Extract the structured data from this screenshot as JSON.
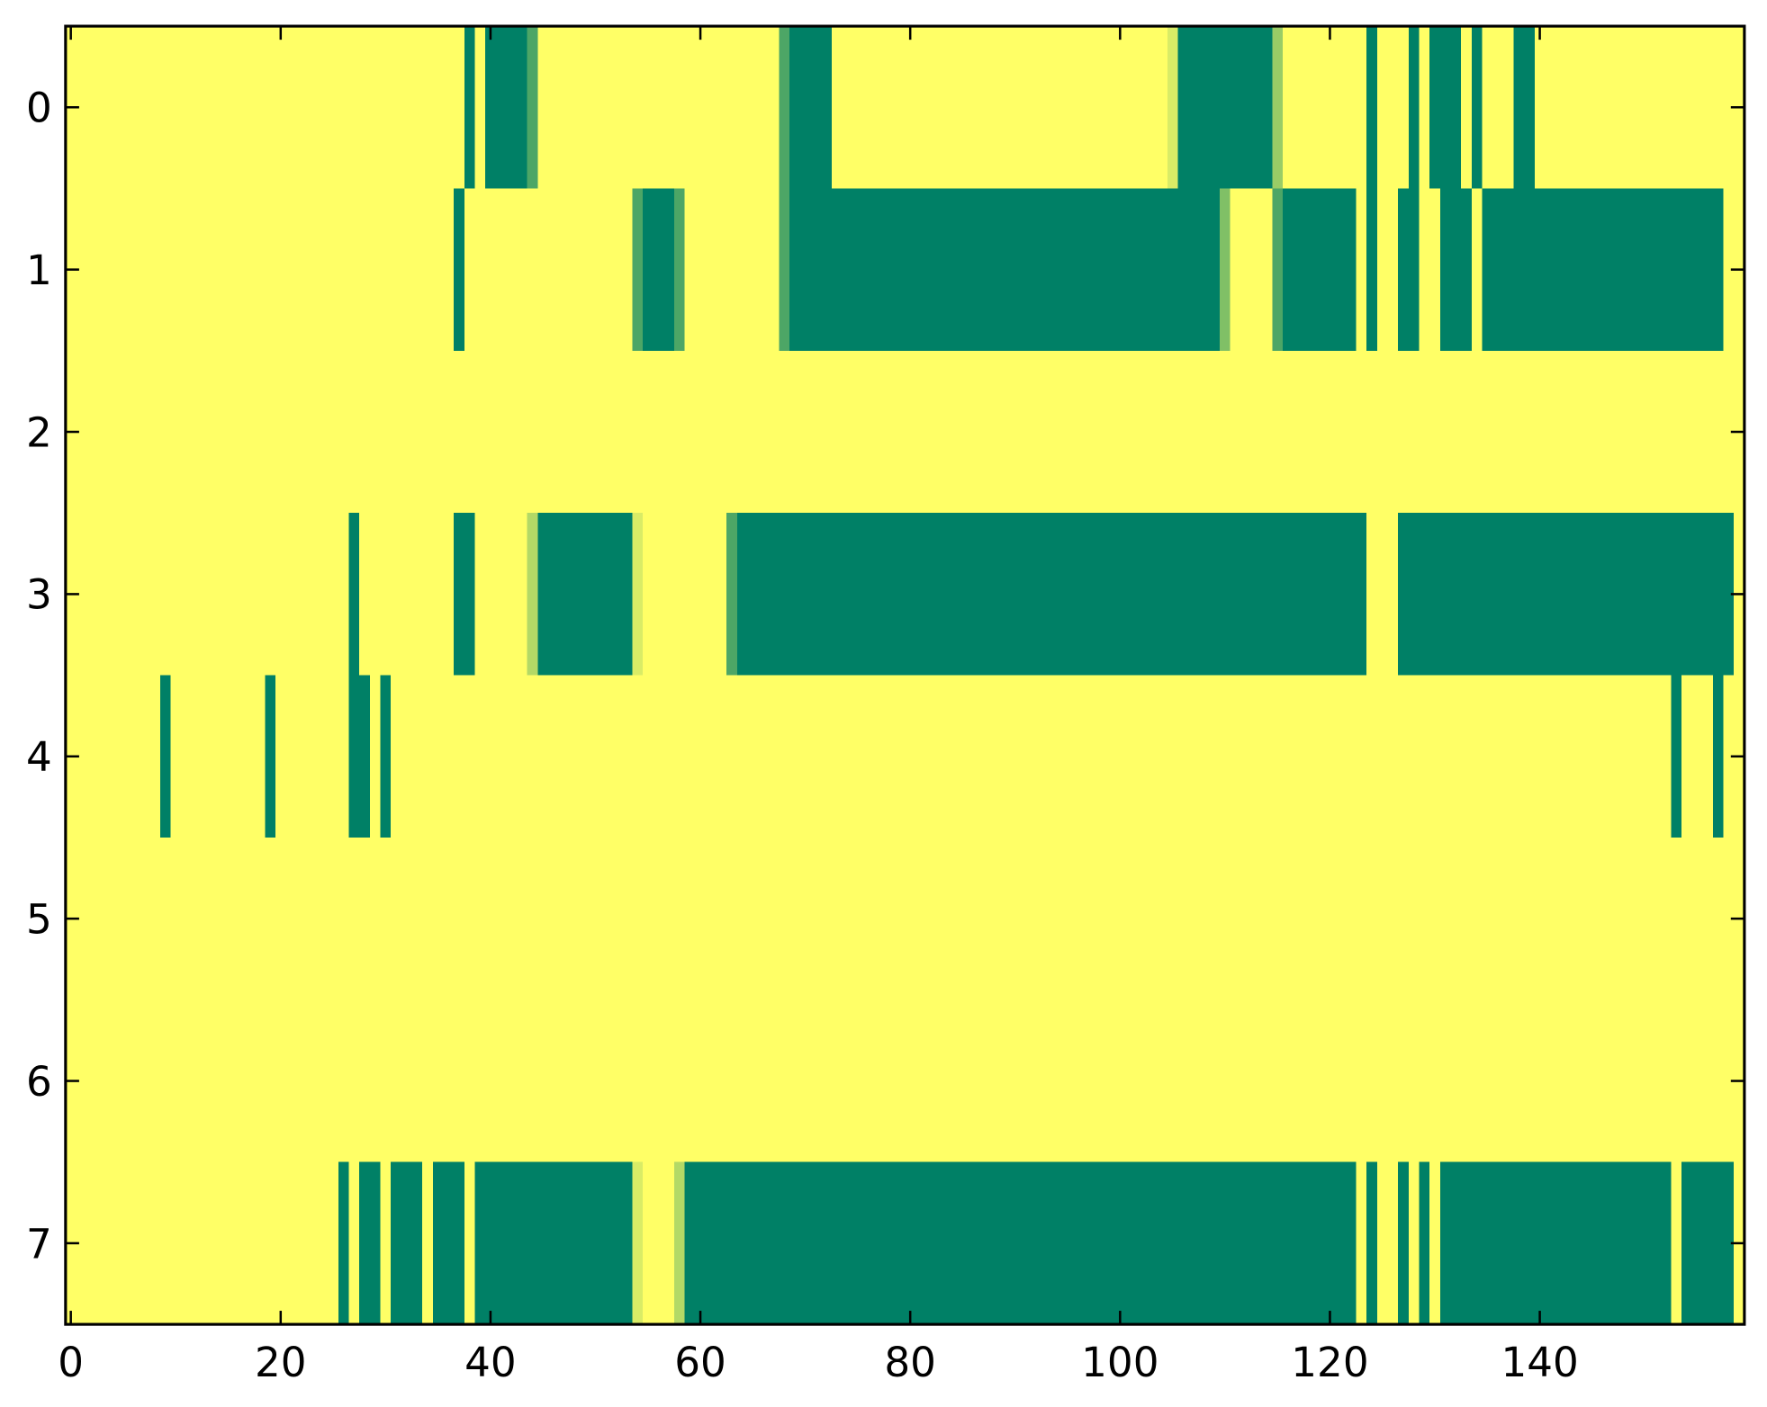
{
  "chart_data": {
    "type": "heatmap",
    "colors": [
      "#008066",
      "#ffff66"
    ],
    "clim": [
      0,
      1
    ],
    "xlim": [
      -0.5,
      159.5
    ],
    "ylim": [
      7.5,
      -0.5
    ],
    "xticks": [
      0,
      20,
      40,
      60,
      80,
      100,
      120,
      140
    ],
    "yticks": [
      0,
      1,
      2,
      3,
      4,
      5,
      6,
      7
    ],
    "values": [
      [
        1,
        1,
        1,
        1,
        1,
        1,
        1,
        1,
        1,
        1,
        1,
        1,
        1,
        1,
        1,
        1,
        1,
        1,
        1,
        1,
        1,
        1,
        1,
        1,
        1,
        1,
        1,
        1,
        1,
        1,
        1,
        1,
        1,
        1,
        1,
        1,
        1,
        1,
        0,
        1,
        0,
        0,
        0,
        0,
        0.3,
        1,
        1,
        1,
        1,
        1,
        1,
        1,
        1,
        1,
        1,
        1,
        1,
        1,
        1,
        1,
        1,
        1,
        1,
        1,
        1,
        1,
        1,
        1,
        0.3,
        0,
        0,
        0,
        0,
        1,
        1,
        1,
        1,
        1,
        1,
        1,
        1,
        1,
        1,
        1,
        1,
        1,
        1,
        1,
        1,
        1,
        1,
        1,
        1,
        1,
        1,
        1,
        1,
        1,
        1,
        1,
        1,
        1,
        1,
        1,
        1,
        0.85,
        0,
        0,
        0,
        0,
        0,
        0,
        0,
        0,
        0,
        0.6,
        1,
        1,
        1,
        1,
        1,
        1,
        1,
        1,
        0,
        1,
        1,
        1,
        0,
        1,
        0,
        0,
        0,
        1,
        0,
        1,
        1,
        1,
        0,
        0,
        1,
        1,
        1,
        1,
        1,
        1,
        1,
        1,
        1,
        1,
        1,
        1,
        1,
        1,
        1,
        1,
        1,
        1,
        1,
        1
      ],
      [
        1,
        1,
        1,
        1,
        1,
        1,
        1,
        1,
        1,
        1,
        1,
        1,
        1,
        1,
        1,
        1,
        1,
        1,
        1,
        1,
        1,
        1,
        1,
        1,
        1,
        1,
        1,
        1,
        1,
        1,
        1,
        1,
        1,
        1,
        1,
        1,
        1,
        0,
        1,
        1,
        1,
        1,
        1,
        1,
        1,
        1,
        1,
        1,
        1,
        1,
        1,
        1,
        1,
        1,
        0.3,
        0,
        0,
        0,
        0.3,
        1,
        1,
        1,
        1,
        1,
        1,
        1,
        1,
        1,
        0.3,
        0,
        0,
        0,
        0,
        0,
        0,
        0,
        0,
        0,
        0,
        0,
        0,
        0,
        0,
        0,
        0,
        0,
        0,
        0,
        0,
        0,
        0,
        0,
        0,
        0,
        0,
        0,
        0,
        0,
        0,
        0,
        0,
        0,
        0,
        0,
        0,
        0,
        0,
        0,
        0,
        0,
        0.5,
        1,
        1,
        1,
        1,
        0.3,
        0,
        0,
        0,
        0,
        0,
        0,
        0,
        1,
        0,
        1,
        1,
        0,
        0,
        1,
        1,
        0,
        0,
        0,
        1,
        0,
        0,
        0,
        0,
        0,
        0,
        0,
        0,
        0,
        0,
        0,
        0,
        0,
        0,
        0,
        0,
        0,
        0,
        0,
        0,
        0,
        0,
        0,
        1,
        1
      ],
      [
        1,
        1,
        1,
        1,
        1,
        1,
        1,
        1,
        1,
        1,
        1,
        1,
        1,
        1,
        1,
        1,
        1,
        1,
        1,
        1,
        1,
        1,
        1,
        1,
        1,
        1,
        1,
        1,
        1,
        1,
        1,
        1,
        1,
        1,
        1,
        1,
        1,
        1,
        1,
        1,
        1,
        1,
        1,
        1,
        1,
        1,
        1,
        1,
        1,
        1,
        1,
        1,
        1,
        1,
        1,
        1,
        1,
        1,
        1,
        1,
        1,
        1,
        1,
        1,
        1,
        1,
        1,
        1,
        1,
        1,
        1,
        1,
        1,
        1,
        1,
        1,
        1,
        1,
        1,
        1,
        1,
        1,
        1,
        1,
        1,
        1,
        1,
        1,
        1,
        1,
        1,
        1,
        1,
        1,
        1,
        1,
        1,
        1,
        1,
        1,
        1,
        1,
        1,
        1,
        1,
        1,
        1,
        1,
        1,
        1,
        1,
        1,
        1,
        1,
        1,
        1,
        1,
        1,
        1,
        1,
        1,
        1,
        1,
        1,
        1,
        1,
        1,
        1,
        1,
        1,
        1,
        1,
        1,
        1,
        1,
        1,
        1,
        1,
        1,
        1,
        1,
        1,
        1,
        1,
        1,
        1,
        1,
        1,
        1,
        1,
        1,
        1,
        1,
        1,
        1,
        1,
        1,
        1,
        1,
        1
      ],
      [
        1,
        1,
        1,
        1,
        1,
        1,
        1,
        1,
        1,
        1,
        1,
        1,
        1,
        1,
        1,
        1,
        1,
        1,
        1,
        1,
        1,
        1,
        1,
        1,
        1,
        1,
        1,
        0,
        1,
        1,
        1,
        1,
        1,
        1,
        1,
        1,
        1,
        0,
        0,
        1,
        1,
        1,
        1,
        1,
        0.7,
        0,
        0,
        0,
        0,
        0,
        0,
        0,
        0,
        0,
        0.85,
        1,
        1,
        1,
        1,
        1,
        1,
        1,
        1,
        0.3,
        0,
        0,
        0,
        0,
        0,
        0,
        0,
        0,
        0,
        0,
        0,
        0,
        0,
        0,
        0,
        0,
        0,
        0,
        0,
        0,
        0,
        0,
        0,
        0,
        0,
        0,
        0,
        0,
        0,
        0,
        0,
        0,
        0,
        0,
        0,
        0,
        0,
        0,
        0,
        0,
        0,
        0,
        0,
        0,
        0,
        0,
        0,
        0,
        0,
        0,
        0,
        0,
        0,
        0,
        0,
        0,
        0,
        0,
        0,
        0,
        1,
        1,
        1,
        0,
        0,
        0,
        0,
        0,
        0,
        0,
        0,
        0,
        0,
        0,
        0,
        0,
        0,
        0,
        0,
        0,
        0,
        0,
        0,
        0,
        0,
        0,
        0,
        0,
        0,
        0,
        0,
        0,
        0,
        0,
        0,
        1
      ],
      [
        1,
        1,
        1,
        1,
        1,
        1,
        1,
        1,
        1,
        0,
        1,
        1,
        1,
        1,
        1,
        1,
        1,
        1,
        1,
        0,
        1,
        1,
        1,
        1,
        1,
        1,
        1,
        0,
        0,
        1,
        0,
        1,
        1,
        1,
        1,
        1,
        1,
        1,
        1,
        1,
        1,
        1,
        1,
        1,
        1,
        1,
        1,
        1,
        1,
        1,
        1,
        1,
        1,
        1,
        1,
        1,
        1,
        1,
        1,
        1,
        1,
        1,
        1,
        1,
        1,
        1,
        1,
        1,
        1,
        1,
        1,
        1,
        1,
        1,
        1,
        1,
        1,
        1,
        1,
        1,
        1,
        1,
        1,
        1,
        1,
        1,
        1,
        1,
        1,
        1,
        1,
        1,
        1,
        1,
        1,
        1,
        1,
        1,
        1,
        1,
        1,
        1,
        1,
        1,
        1,
        1,
        1,
        1,
        1,
        1,
        1,
        1,
        1,
        1,
        1,
        1,
        1,
        1,
        1,
        1,
        1,
        1,
        1,
        1,
        1,
        1,
        1,
        1,
        1,
        1,
        1,
        1,
        1,
        1,
        1,
        1,
        1,
        1,
        1,
        1,
        1,
        1,
        1,
        1,
        1,
        1,
        1,
        1,
        1,
        1,
        1,
        1,
        1,
        0,
        1,
        1,
        1,
        0,
        1,
        1
      ],
      [
        1,
        1,
        1,
        1,
        1,
        1,
        1,
        1,
        1,
        1,
        1,
        1,
        1,
        1,
        1,
        1,
        1,
        1,
        1,
        1,
        1,
        1,
        1,
        1,
        1,
        1,
        1,
        1,
        1,
        1,
        1,
        1,
        1,
        1,
        1,
        1,
        1,
        1,
        1,
        1,
        1,
        1,
        1,
        1,
        1,
        1,
        1,
        1,
        1,
        1,
        1,
        1,
        1,
        1,
        1,
        1,
        1,
        1,
        1,
        1,
        1,
        1,
        1,
        1,
        1,
        1,
        1,
        1,
        1,
        1,
        1,
        1,
        1,
        1,
        1,
        1,
        1,
        1,
        1,
        1,
        1,
        1,
        1,
        1,
        1,
        1,
        1,
        1,
        1,
        1,
        1,
        1,
        1,
        1,
        1,
        1,
        1,
        1,
        1,
        1,
        1,
        1,
        1,
        1,
        1,
        1,
        1,
        1,
        1,
        1,
        1,
        1,
        1,
        1,
        1,
        1,
        1,
        1,
        1,
        1,
        1,
        1,
        1,
        1,
        1,
        1,
        1,
        1,
        1,
        1,
        1,
        1,
        1,
        1,
        1,
        1,
        1,
        1,
        1,
        1,
        1,
        1,
        1,
        1,
        1,
        1,
        1,
        1,
        1,
        1,
        1,
        1,
        1,
        1,
        1,
        1,
        1,
        1,
        1,
        1
      ],
      [
        1,
        1,
        1,
        1,
        1,
        1,
        1,
        1,
        1,
        1,
        1,
        1,
        1,
        1,
        1,
        1,
        1,
        1,
        1,
        1,
        1,
        1,
        1,
        1,
        1,
        1,
        1,
        1,
        1,
        1,
        1,
        1,
        1,
        1,
        1,
        1,
        1,
        1,
        1,
        1,
        1,
        1,
        1,
        1,
        1,
        1,
        1,
        1,
        1,
        1,
        1,
        1,
        1,
        1,
        1,
        1,
        1,
        1,
        1,
        1,
        1,
        1,
        1,
        1,
        1,
        1,
        1,
        1,
        1,
        1,
        1,
        1,
        1,
        1,
        1,
        1,
        1,
        1,
        1,
        1,
        1,
        1,
        1,
        1,
        1,
        1,
        1,
        1,
        1,
        1,
        1,
        1,
        1,
        1,
        1,
        1,
        1,
        1,
        1,
        1,
        1,
        1,
        1,
        1,
        1,
        1,
        1,
        1,
        1,
        1,
        1,
        1,
        1,
        1,
        1,
        1,
        1,
        1,
        1,
        1,
        1,
        1,
        1,
        1,
        1,
        1,
        1,
        1,
        1,
        1,
        1,
        1,
        1,
        1,
        1,
        1,
        1,
        1,
        1,
        1,
        1,
        1,
        1,
        1,
        1,
        1,
        1,
        1,
        1,
        1,
        1,
        1,
        1,
        1,
        1,
        1,
        1,
        1,
        1,
        1
      ],
      [
        1,
        1,
        1,
        1,
        1,
        1,
        1,
        1,
        1,
        1,
        1,
        1,
        1,
        1,
        1,
        1,
        1,
        1,
        1,
        1,
        1,
        1,
        1,
        1,
        1,
        1,
        0,
        1,
        0,
        0,
        1,
        0,
        0,
        0,
        1,
        0,
        0,
        0,
        1,
        0,
        0,
        0,
        0,
        0,
        0,
        0,
        0,
        0,
        0,
        0,
        0,
        0,
        0,
        0,
        0.85,
        1,
        1,
        1,
        0.7,
        0,
        0,
        0,
        0,
        0,
        0,
        0,
        0,
        0,
        0,
        0,
        0,
        0,
        0,
        0,
        0,
        0,
        0,
        0,
        0,
        0,
        0,
        0,
        0,
        0,
        0,
        0,
        0,
        0,
        0,
        0,
        0,
        0,
        0,
        0,
        0,
        0,
        0,
        0,
        0,
        0,
        0,
        0,
        0,
        0,
        0,
        0,
        0,
        0,
        0,
        0,
        0,
        0,
        0,
        0,
        0,
        0,
        0,
        0,
        0,
        0,
        0,
        0,
        0,
        1,
        0,
        1,
        1,
        0,
        1,
        0,
        1,
        0,
        0,
        0,
        0,
        0,
        0,
        0,
        0,
        0,
        0,
        0,
        0,
        0,
        0,
        0,
        0,
        0,
        0,
        0,
        0,
        0,
        0,
        1,
        0,
        0,
        0,
        0,
        0,
        1
      ]
    ]
  }
}
